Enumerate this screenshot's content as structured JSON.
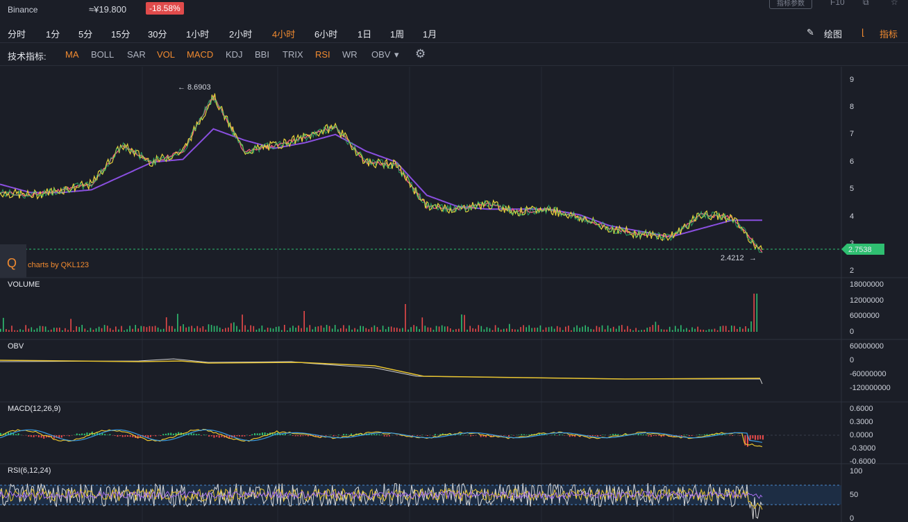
{
  "header": {
    "exchange": "Binance",
    "price": "≈¥19.800",
    "change": "-18.58%",
    "btn_params": "指标参数",
    "btn_fs": "F10"
  },
  "periods": [
    "分时",
    "1分",
    "5分",
    "15分",
    "30分",
    "1小时",
    "2小时",
    "4小时",
    "6小时",
    "1日",
    "1周",
    "1月"
  ],
  "active_period": "4小时",
  "tools": {
    "draw": "绘图",
    "indicators": "指标"
  },
  "indicators": {
    "label": "技术指标:",
    "items": [
      "MA",
      "BOLL",
      "SAR",
      "VOL",
      "MACD",
      "KDJ",
      "BBI",
      "TRIX",
      "RSI",
      "WR",
      "OBV"
    ],
    "active": [
      "MA",
      "VOL",
      "MACD",
      "RSI"
    ]
  },
  "colors": {
    "up": "#2fbf71",
    "down": "#e84a4a",
    "accent": "#f28b30",
    "ma_yellow": "#e8d43a",
    "ma_pink": "#e4577a",
    "ma_purple": "#8a4fe0",
    "bg": "#1b1e27"
  },
  "watermark": "charts by QKL123",
  "main_chart": {
    "high_label": "8.6903",
    "low_label": "2.4212",
    "current_price": "2.7538",
    "y_ticks": [
      "9",
      "8",
      "7",
      "6",
      "5",
      "4",
      "3",
      "2"
    ]
  },
  "panels": {
    "volume": {
      "title": "VOLUME",
      "ticks": [
        "18000000",
        "12000000",
        "6000000",
        "0"
      ]
    },
    "obv": {
      "title": "OBV",
      "ticks": [
        "60000000",
        "0",
        "-60000000",
        "-120000000"
      ]
    },
    "macd": {
      "title": "MACD(12,26,9)",
      "ticks": [
        "0.6000",
        "0.3000",
        "0.0000",
        "-0.3000",
        "-0.6000"
      ]
    },
    "rsi": {
      "title": "RSI(6,12,24)",
      "ticks": [
        "100",
        "50",
        "0"
      ]
    }
  },
  "chart_data": {
    "type": "line",
    "price_series_x": [
      0,
      4,
      8,
      12,
      16,
      20,
      24,
      28,
      32,
      36,
      40,
      44,
      48,
      52,
      56,
      60,
      64,
      68,
      72,
      76,
      80,
      84,
      88,
      92,
      96,
      100
    ],
    "price_series": [
      4.9,
      4.8,
      5.0,
      5.2,
      6.6,
      6.0,
      6.4,
      8.4,
      6.4,
      6.6,
      6.9,
      7.3,
      6.0,
      5.9,
      4.4,
      4.3,
      4.5,
      4.2,
      4.3,
      4.0,
      3.6,
      3.4,
      3.3,
      4.1,
      4.0,
      2.75
    ],
    "ma_long": [
      5.2,
      4.9,
      4.9,
      5.0,
      5.5,
      6.0,
      6.1,
      7.2,
      6.8,
      6.5,
      6.7,
      7.0,
      6.4,
      6.0,
      4.8,
      4.4,
      4.3,
      4.3,
      4.3,
      4.1,
      3.7,
      3.5,
      3.3,
      3.6,
      3.9,
      3.9
    ],
    "ylim": [
      2,
      9
    ]
  }
}
